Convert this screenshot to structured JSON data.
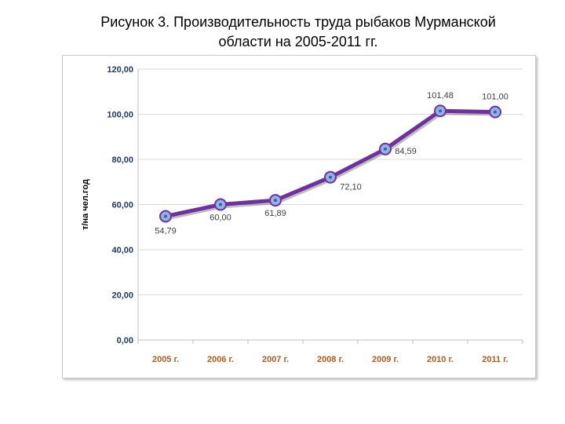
{
  "title": {
    "line1": "Рисунок 3. Производительность труда рыбаков Мурманской",
    "line2": "области на 2005-2011 гг."
  },
  "colors": {
    "series_line": "#7030a0",
    "marker_fill": "#8fb4e3",
    "grid": "#d9d9d9",
    "y_ticks": "#1f3864",
    "x_ticks": "#b35a1f"
  },
  "chart_data": {
    "type": "line",
    "categories": [
      "2005 г.",
      "2006 г.",
      "2007 г.",
      "2008 г.",
      "2009 г.",
      "2010 г.",
      "2011 г."
    ],
    "series": [
      {
        "values": [
          54.79,
          60.0,
          61.89,
          72.1,
          84.59,
          101.48,
          101.0
        ],
        "data_labels": [
          "54,79",
          "60,00",
          "61,89",
          "72,10",
          "84,59",
          "101,48",
          "101,00"
        ]
      }
    ],
    "ylabel": "т/на чел.год",
    "xlabel": "",
    "ylim": [
      0,
      120
    ],
    "y_ticks": [
      0,
      20,
      40,
      60,
      80,
      100,
      120
    ],
    "y_tick_labels": [
      "0,00",
      "20,00",
      "40,00",
      "60,00",
      "80,00",
      "100,00",
      "120,00"
    ],
    "grid": true,
    "legend": "none"
  }
}
